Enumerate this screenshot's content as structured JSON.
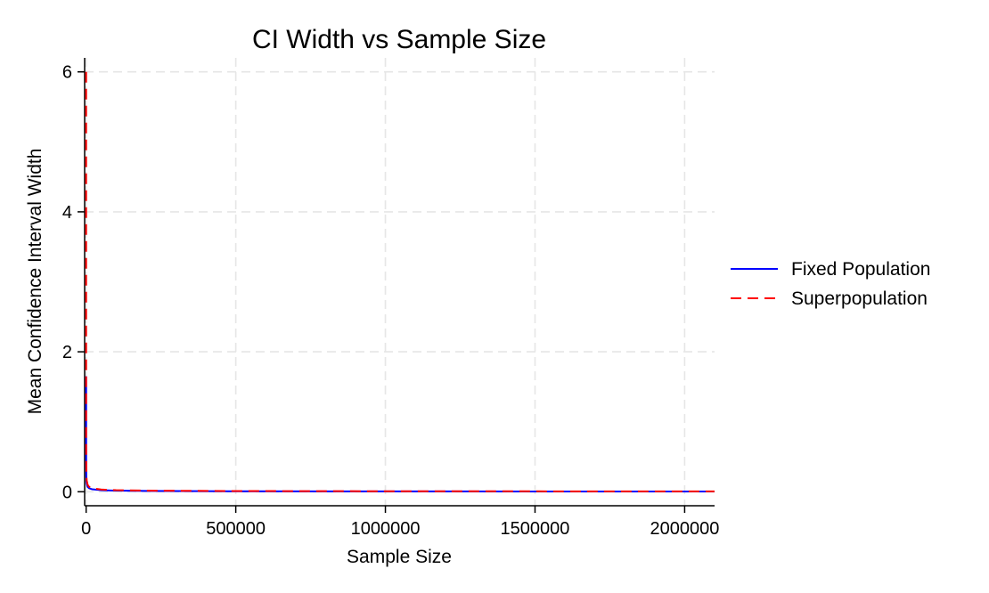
{
  "chart_data": {
    "type": "line",
    "title": "CI Width vs Sample Size",
    "xlabel": "Sample Size",
    "ylabel": "Mean Confidence Interval Width",
    "xlim": [
      -5000,
      2100000
    ],
    "ylim": [
      -0.2,
      6.2
    ],
    "xticks": [
      0,
      500000,
      1000000,
      1500000,
      2000000
    ],
    "xtick_labels": [
      "0",
      "500000",
      "1000000",
      "1500000",
      "2000000"
    ],
    "yticks": [
      0,
      2,
      4,
      6
    ],
    "ytick_labels": [
      "0",
      "2",
      "4",
      "6"
    ],
    "grid": true,
    "legend_position": "right",
    "series": [
      {
        "name": "Fixed Population",
        "color": "#0000ff",
        "style": "solid",
        "x": [
          10,
          20,
          50,
          100,
          200,
          500,
          1000,
          2000,
          5000,
          10000,
          20000,
          50000,
          100000,
          200000,
          500000,
          1000000,
          1500000,
          2100000
        ],
        "y": [
          1.65,
          1.2,
          0.75,
          0.5,
          0.35,
          0.22,
          0.15,
          0.11,
          0.07,
          0.05,
          0.035,
          0.022,
          0.016,
          0.011,
          0.007,
          0.005,
          0.004,
          0.0035
        ]
      },
      {
        "name": "Superpopulation",
        "color": "#ff0000",
        "style": "dashed",
        "x": [
          2,
          5,
          10,
          20,
          50,
          100,
          200,
          500,
          1000,
          2000,
          5000,
          10000,
          20000,
          50000,
          100000,
          200000,
          500000,
          1000000,
          1500000,
          2100000
        ],
        "y": [
          6.0,
          3.6,
          2.4,
          1.7,
          1.0,
          0.7,
          0.5,
          0.32,
          0.22,
          0.16,
          0.1,
          0.07,
          0.05,
          0.032,
          0.022,
          0.016,
          0.01,
          0.007,
          0.006,
          0.005
        ]
      }
    ]
  }
}
